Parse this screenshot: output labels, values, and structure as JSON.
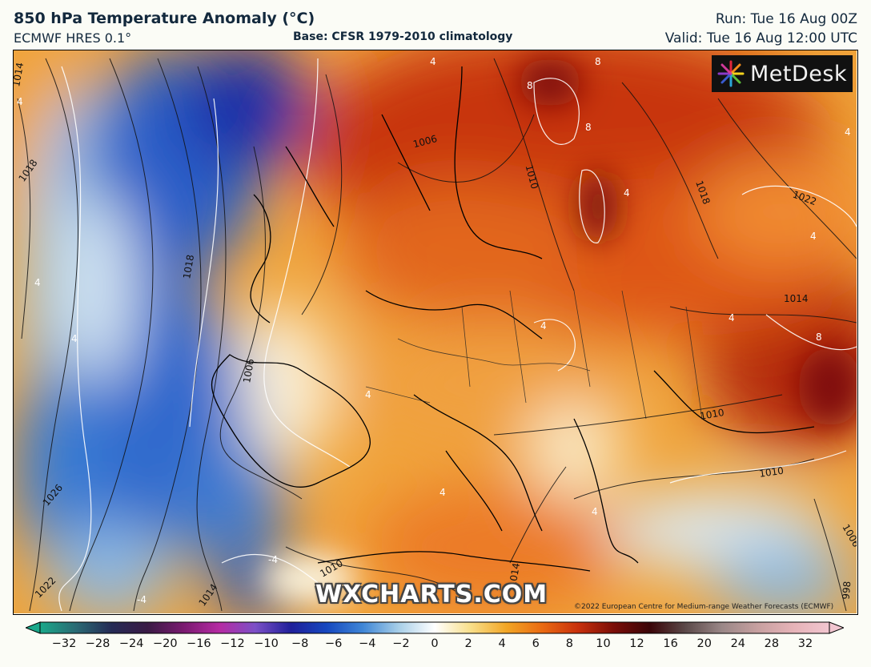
{
  "header": {
    "title": "850 hPa Temperature Anomaly (°C)",
    "model": "ECMWF HRES 0.1°",
    "base": "Base: CFSR 1979-2010 climatology",
    "run": "Run: Tue 16 Aug 00Z",
    "valid": "Valid: Tue 16 Aug 12:00 UTC"
  },
  "logo": {
    "text": "MetDesk",
    "icon": "metdesk-star-icon"
  },
  "watermark": "WXCHARTS.COM",
  "copyright": "©2022 European Centre for Medium-range Weather Forecasts (ECMWF)",
  "isobar_labels": [
    "1014",
    "1018",
    "1018",
    "1006",
    "1026",
    "1022",
    "1014",
    "1010",
    "1006",
    "1010",
    "1018",
    "1022",
    "1014",
    "1010",
    "1010",
    "1014",
    "1006",
    "998"
  ],
  "anomaly_labels": [
    "4",
    "4",
    "4",
    "4",
    "4",
    "4",
    "4",
    "8",
    "8",
    "8",
    "8",
    "4",
    "4",
    "4",
    "4",
    "4",
    "-4",
    "-4"
  ],
  "colorbar": {
    "ticks": [
      "−32",
      "−28",
      "−24",
      "−20",
      "−16",
      "−12",
      "−10",
      "−8",
      "−6",
      "−4",
      "−2",
      "0",
      "2",
      "4",
      "6",
      "8",
      "10",
      "12",
      "16",
      "20",
      "24",
      "28",
      "32"
    ],
    "colors": [
      "#1aa88a",
      "#2a6a74",
      "#252a55",
      "#3a1a45",
      "#7a1a70",
      "#b62ba3",
      "#7c50c7",
      "#1f1f9a",
      "#1648c0",
      "#3f86d6",
      "#a8cfe8",
      "#ffffff",
      "#f8df8a",
      "#f2a626",
      "#ea6a12",
      "#c8300c",
      "#7a0d08",
      "#3a0508",
      "#5c4a4a",
      "#9a8787",
      "#c7a0a0",
      "#e6b3b8",
      "#f2c6d0"
    ]
  }
}
